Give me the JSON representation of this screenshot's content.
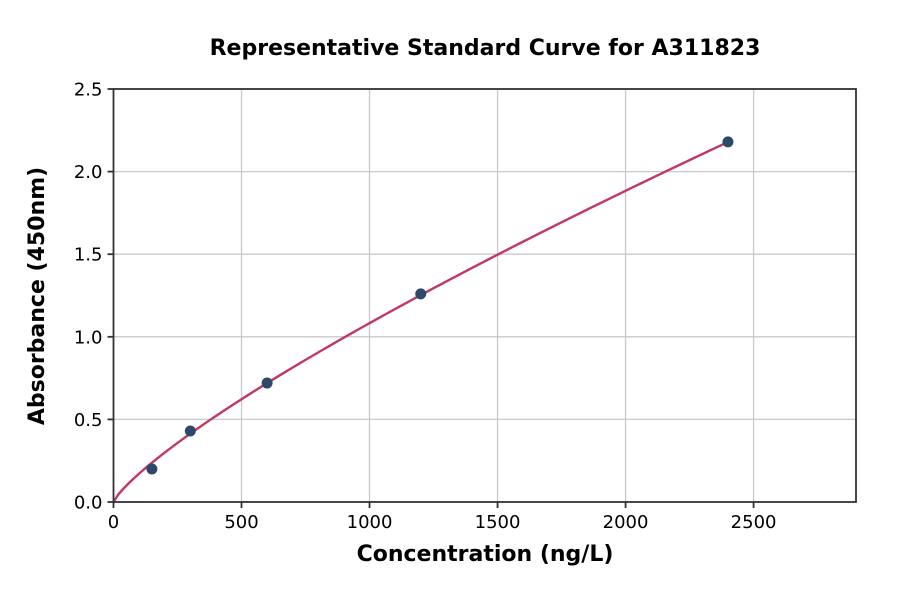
{
  "chart_data": {
    "type": "scatter",
    "title": "Representative Standard Curve for A311823",
    "xlabel": "Concentration (ng/L)",
    "ylabel": "Absorbance (450nm)",
    "points": {
      "x": [
        150,
        300,
        600,
        1200,
        2400
      ],
      "y": [
        0.2,
        0.43,
        0.72,
        1.26,
        2.18
      ]
    },
    "fit_curve": {
      "model": "power",
      "a": 0.00434,
      "b": 0.799,
      "x_range": [
        0,
        2400
      ]
    },
    "xlim": [
      0,
      2900
    ],
    "ylim": [
      0,
      2.5
    ],
    "xticks": [
      0,
      500,
      1000,
      1500,
      2000,
      2500
    ],
    "yticks": [
      "0.0",
      "0.5",
      "1.0",
      "1.5",
      "2.0",
      "2.5"
    ],
    "grid": true,
    "legend": null,
    "colors": {
      "curve": "#c13860",
      "marker": "#2e4a6b",
      "grid": "#c9c9c9",
      "spine": "#333333",
      "text": "#000000",
      "background": "#ffffff"
    }
  }
}
